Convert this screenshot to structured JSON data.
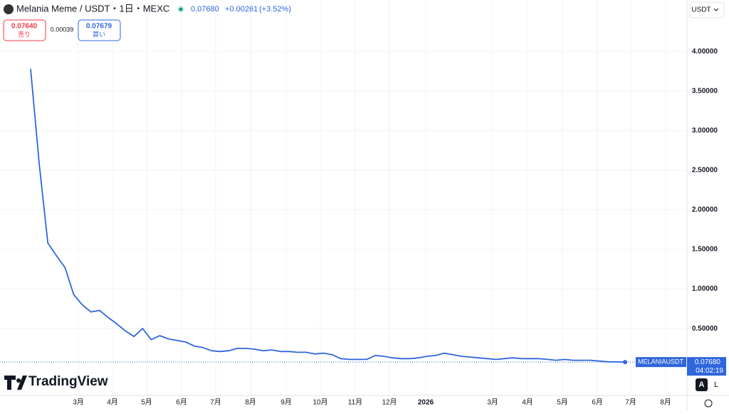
{
  "header": {
    "title": "Melania Meme / USDT・1日・MEXC",
    "last": "0.07680",
    "change": "+0.00261",
    "change_pct": "(+3.52%)",
    "currency": "USDT"
  },
  "trade": {
    "sell_price": "0.07640",
    "sell_label": "売り",
    "spread": "0.00039",
    "buy_price": "0.07679",
    "buy_label": "買い"
  },
  "chart_data": {
    "type": "line",
    "series": [
      {
        "name": "MELANIAUSDT",
        "color": "#2f66dc",
        "values": [
          3.78,
          2.58,
          1.58,
          1.42,
          1.27,
          0.93,
          0.8,
          0.71,
          0.73,
          0.64,
          0.56,
          0.47,
          0.4,
          0.5,
          0.36,
          0.41,
          0.37,
          0.35,
          0.33,
          0.28,
          0.26,
          0.22,
          0.21,
          0.22,
          0.25,
          0.25,
          0.24,
          0.22,
          0.23,
          0.21,
          0.21,
          0.2,
          0.2,
          0.18,
          0.19,
          0.17,
          0.12,
          0.11,
          0.11,
          0.11,
          0.16,
          0.15,
          0.13,
          0.12,
          0.12,
          0.13,
          0.15,
          0.16,
          0.19,
          0.17,
          0.15,
          0.14,
          0.13,
          0.12,
          0.11,
          0.12,
          0.13,
          0.12,
          0.12,
          0.12,
          0.11,
          0.1,
          0.11,
          0.1,
          0.1,
          0.1,
          0.09,
          0.08,
          0.08,
          0.0768
        ]
      }
    ],
    "ylim": [
      -0.345,
      4.65
    ],
    "yticks": [
      {
        "value": 0.5,
        "label": "0.50000"
      },
      {
        "value": 1,
        "label": "1.00000"
      },
      {
        "value": 1.5,
        "label": "1.50000"
      },
      {
        "value": 2,
        "label": "2.00000"
      },
      {
        "value": 2.5,
        "label": "2.50000"
      },
      {
        "value": 3,
        "label": "3.00000"
      },
      {
        "value": 3.5,
        "label": "3.50000"
      },
      {
        "value": 4,
        "label": "4.00000"
      }
    ],
    "x_labels": [
      "3月",
      "4月",
      "5月",
      "6月",
      "7月",
      "8月",
      "9月",
      "10月",
      "11月",
      "12月",
      "2026",
      "3月",
      "4月",
      "5月",
      "6月",
      "7月",
      "8月"
    ],
    "grid": true,
    "last_price": {
      "value": 0.0768,
      "label": "0.07680"
    },
    "countdown": "04:02:19"
  },
  "branding": "TradingView",
  "buttons": [
    "A",
    "L"
  ]
}
